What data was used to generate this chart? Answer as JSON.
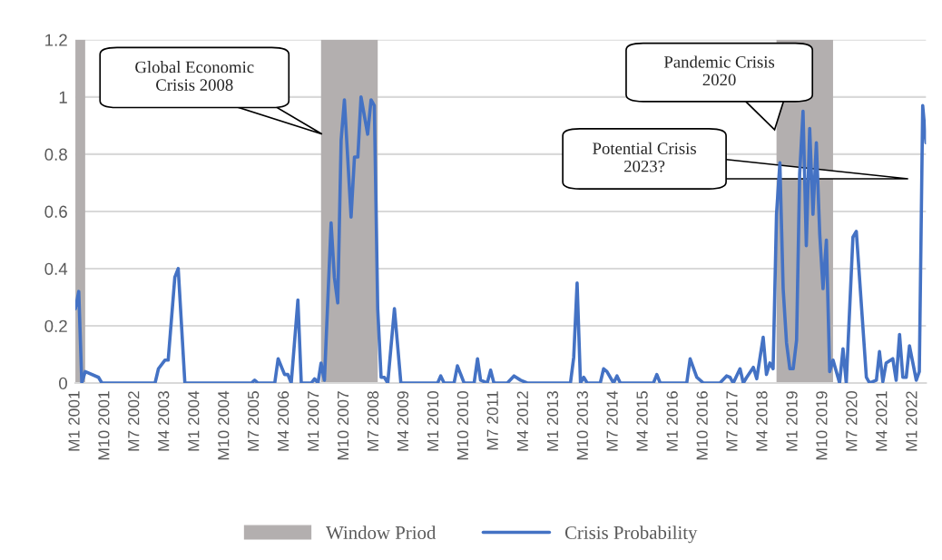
{
  "chart_data": {
    "type": "line",
    "x": [
      "2001-01",
      "2001-02",
      "2001-03",
      "2001-04",
      "2001-08",
      "2001-09",
      "2003-01",
      "2003-02",
      "2003-04",
      "2003-05",
      "2003-07",
      "2003-08",
      "2003-10",
      "2005-06",
      "2005-07",
      "2005-08",
      "2006-01",
      "2006-02",
      "2006-04",
      "2006-05",
      "2006-06",
      "2006-08",
      "2006-09",
      "2006-12",
      "2007-01",
      "2007-02",
      "2007-03",
      "2007-04",
      "2007-06",
      "2007-07",
      "2007-08",
      "2007-09",
      "2007-10",
      "2007-12",
      "2008-01",
      "2008-02",
      "2008-03",
      "2008-05",
      "2008-06",
      "2008-07",
      "2008-08",
      "2008-09",
      "2008-10",
      "2008-11",
      "2009-01",
      "2009-03",
      "2010-02",
      "2010-03",
      "2010-04",
      "2010-07",
      "2010-08",
      "2010-10",
      "2011-01",
      "2011-02",
      "2011-03",
      "2011-05",
      "2011-06",
      "2011-07",
      "2011-11",
      "2012-01",
      "2012-03",
      "2012-05",
      "2013-06",
      "2013-07",
      "2013-08",
      "2013-09",
      "2013-10",
      "2013-11",
      "2014-03",
      "2014-04",
      "2014-05",
      "2014-07",
      "2014-08",
      "2014-09",
      "2015-07",
      "2015-08",
      "2015-09",
      "2016-05",
      "2016-06",
      "2016-08",
      "2016-10",
      "2017-03",
      "2017-05",
      "2017-06",
      "2017-07",
      "2017-09",
      "2017-10",
      "2017-11",
      "2018-01",
      "2018-02",
      "2018-04",
      "2018-05",
      "2018-06",
      "2018-07",
      "2018-08",
      "2018-09",
      "2018-10",
      "2018-11",
      "2018-12",
      "2019-01",
      "2019-02",
      "2019-03",
      "2019-04",
      "2019-05",
      "2019-06",
      "2019-07",
      "2019-08",
      "2019-09",
      "2019-10",
      "2019-11",
      "2019-12",
      "2020-01",
      "2020-03",
      "2020-04",
      "2020-05",
      "2020-07",
      "2020-08",
      "2020-11",
      "2020-12",
      "2021-02",
      "2021-03",
      "2021-04",
      "2021-05",
      "2021-07",
      "2021-08",
      "2021-09",
      "2021-10",
      "2021-11",
      "2021-12",
      "2022-02",
      "2022-03",
      "2022-04",
      "2022-05"
    ],
    "series": [
      {
        "name": "Crisis Probability",
        "color": "#4472c4",
        "values": [
          0.26,
          0.32,
          0,
          0.04,
          0.02,
          0,
          0,
          0.05,
          0.08,
          0.08,
          0.37,
          0.4,
          0,
          0,
          0.01,
          0,
          0,
          0.085,
          0.03,
          0.03,
          0,
          0.29,
          0,
          0,
          0.015,
          0,
          0.07,
          0.01,
          0.56,
          0.37,
          0.28,
          0.85,
          0.99,
          0.58,
          0.79,
          0.79,
          1.0,
          0.87,
          0.99,
          0.97,
          0.26,
          0.02,
          0.02,
          0,
          0.26,
          0,
          0,
          0.025,
          0,
          0,
          0.06,
          0,
          0,
          0.085,
          0.01,
          0,
          0.045,
          0,
          0,
          0.025,
          0.01,
          0,
          0,
          0.09,
          0.35,
          0,
          0.02,
          0,
          0,
          0.05,
          0.04,
          0,
          0.025,
          0,
          0,
          0.03,
          0,
          0,
          0.085,
          0.02,
          0,
          0,
          0.025,
          0.02,
          0,
          0.05,
          0,
          0.02,
          0.055,
          0.015,
          0.16,
          0.03,
          0.07,
          0.05,
          0.59,
          0.77,
          0.33,
          0.14,
          0.05,
          0.05,
          0.15,
          0.73,
          0.95,
          0.48,
          0.89,
          0.59,
          0.84,
          0.52,
          0.33,
          0.5,
          0.04,
          0.08,
          0,
          0.12,
          0,
          0.51,
          0.53,
          0.02,
          0,
          0.01,
          0.11,
          0.005,
          0.07,
          0.085,
          0.01,
          0.17,
          0.02,
          0.02,
          0.13,
          0.01,
          0.04,
          0.97,
          0.84
        ]
      }
    ],
    "bands": [
      {
        "axis": "x",
        "from": "2001-01",
        "to": "2001-04",
        "label": "Window Priod",
        "color": "#b3afaf"
      },
      {
        "axis": "x",
        "from": "2007-03",
        "to": "2008-08",
        "color": "#b3afaf"
      },
      {
        "axis": "x",
        "from": "2018-08",
        "to": "2020-01",
        "color": "#b3afaf"
      }
    ],
    "annotations": [
      "Global Economic\nCrisis 2008",
      "Pandemic Crisis\n2020",
      "Potential Crisis\n2023?"
    ],
    "xlim": [
      "2001-01",
      "2022-05"
    ],
    "xticks": [
      {
        "value": "2001-01",
        "label": "M1 2001"
      },
      {
        "value": "2001-10",
        "label": "M10 2001"
      },
      {
        "value": "2002-07",
        "label": "M7 2002"
      },
      {
        "value": "2003-04",
        "label": "M4 2003"
      },
      {
        "value": "2004-01",
        "label": "M1 2004"
      },
      {
        "value": "2004-10",
        "label": "M10 2004"
      },
      {
        "value": "2005-07",
        "label": "M7 2005"
      },
      {
        "value": "2006-04",
        "label": "M4 2006"
      },
      {
        "value": "2007-01",
        "label": "M1 2007"
      },
      {
        "value": "2007-10",
        "label": "M10 2007"
      },
      {
        "value": "2008-07",
        "label": "M7 2008"
      },
      {
        "value": "2009-04",
        "label": "M4 2009"
      },
      {
        "value": "2010-01",
        "label": "M1 2010"
      },
      {
        "value": "2010-10",
        "label": "M10 2010"
      },
      {
        "value": "2011-07",
        "label": "M7 2011"
      },
      {
        "value": "2012-04",
        "label": "M4 2012"
      },
      {
        "value": "2013-01",
        "label": "M1 2013"
      },
      {
        "value": "2013-10",
        "label": "M10 2013"
      },
      {
        "value": "2014-07",
        "label": "M7 2014"
      },
      {
        "value": "2015-04",
        "label": "M4 2015"
      },
      {
        "value": "2016-01",
        "label": "M1 2016"
      },
      {
        "value": "2016-10",
        "label": "M10 2016"
      },
      {
        "value": "2017-07",
        "label": "M7 2017"
      },
      {
        "value": "2018-04",
        "label": "M4 2018"
      },
      {
        "value": "2019-01",
        "label": "M1 2019"
      },
      {
        "value": "2019-10",
        "label": "M10 2019"
      },
      {
        "value": "2020-07",
        "label": "M7 2020"
      },
      {
        "value": "2021-04",
        "label": "M4 2021"
      },
      {
        "value": "2022-01",
        "label": "M1 2022"
      }
    ],
    "ylim": [
      0,
      1.2
    ],
    "yticks": [
      0,
      0.2,
      0.4,
      0.6,
      0.8,
      1,
      1.2
    ],
    "grid": "y",
    "legend": "bottom",
    "marker": "none",
    "line_style": "solid"
  }
}
